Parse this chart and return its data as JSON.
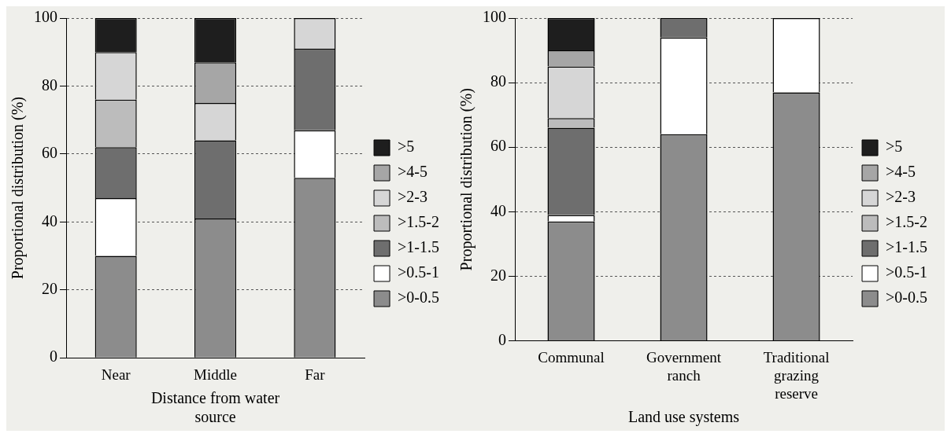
{
  "chart_data": [
    {
      "type": "bar",
      "stacked": true,
      "categories": [
        "Near",
        "Middle",
        "Far"
      ],
      "xlabel": "Distance from water source",
      "ylabel": "Proportional distribution (%)",
      "ylim": [
        0,
        100
      ],
      "yticks": [
        0,
        20,
        40,
        60,
        80,
        100
      ],
      "grid": "y",
      "legend": "right",
      "series": [
        {
          "name": ">0-0.5",
          "color": "#8c8c8c",
          "values": [
            30,
            41,
            53
          ]
        },
        {
          "name": ">0.5-1",
          "color": "#ffffff",
          "values": [
            17,
            0,
            14
          ]
        },
        {
          "name": ">1-1.5",
          "color": "#6e6e6e",
          "values": [
            15,
            23,
            24
          ]
        },
        {
          "name": ">1.5-2",
          "color": "#bcbcbc",
          "values": [
            14,
            0,
            0
          ]
        },
        {
          "name": ">2-3",
          "color": "#d6d6d6",
          "values": [
            14,
            11,
            9
          ]
        },
        {
          "name": ">4-5",
          "color": "#a6a6a6",
          "values": [
            0,
            12,
            0
          ]
        },
        {
          "name": ">5",
          "color": "#1e1e1e",
          "values": [
            10,
            13,
            0
          ]
        }
      ]
    },
    {
      "type": "bar",
      "stacked": true,
      "categories": [
        "Communal",
        "Government ranch",
        "Traditional grazing reserve"
      ],
      "xlabel": "Land use systems",
      "ylabel": "Proportional distribution (%)",
      "ylim": [
        0,
        100
      ],
      "yticks": [
        0,
        20,
        40,
        60,
        80,
        100
      ],
      "grid": "y",
      "legend": "right",
      "series": [
        {
          "name": ">0-0.5",
          "color": "#8c8c8c",
          "values": [
            37,
            64,
            77
          ]
        },
        {
          "name": ">0.5-1",
          "color": "#ffffff",
          "values": [
            2,
            30,
            23
          ]
        },
        {
          "name": ">1-1.5",
          "color": "#6e6e6e",
          "values": [
            27,
            6,
            0
          ]
        },
        {
          "name": ">1.5-2",
          "color": "#bcbcbc",
          "values": [
            3,
            0,
            0
          ]
        },
        {
          "name": ">2-3",
          "color": "#d6d6d6",
          "values": [
            16,
            0,
            0
          ]
        },
        {
          "name": ">4-5",
          "color": "#a6a6a6",
          "values": [
            5,
            0,
            0
          ]
        },
        {
          "name": ">5",
          "color": "#1e1e1e",
          "values": [
            10,
            0,
            0
          ]
        }
      ]
    }
  ]
}
